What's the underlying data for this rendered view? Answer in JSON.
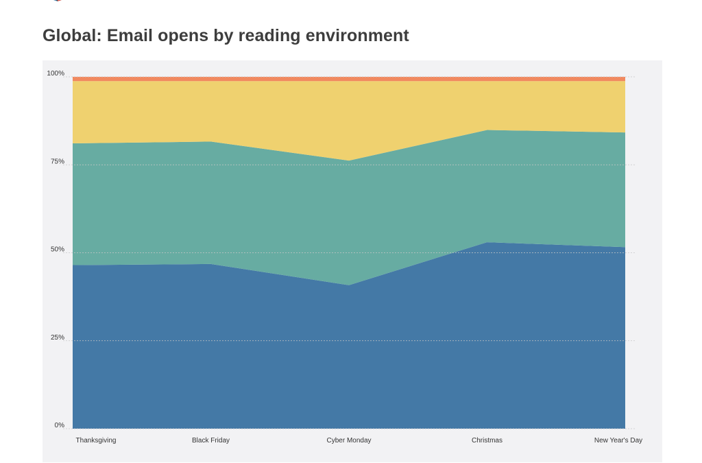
{
  "header": {
    "title": "Global: Email opens by reading environment"
  },
  "logo": {
    "icon": "pie-logo-icon",
    "colors": [
      "#3d7fb0",
      "#e45b4f",
      "#e8c455",
      "#65ab9e",
      "#2f4858"
    ]
  },
  "chart_data": {
    "type": "area",
    "stacked": true,
    "percent": true,
    "title": "Global: Email opens by reading environment",
    "xlabel": "",
    "ylabel": "",
    "categories": [
      "Thanksgiving",
      "Black Friday",
      "Cyber Monday",
      "Christmas",
      "New Year's Day"
    ],
    "y_ticks": [
      "0%",
      "25%",
      "50%",
      "75%",
      "100%"
    ],
    "ylim": [
      0,
      100
    ],
    "grid": true,
    "series": [
      {
        "values": [
          46.5,
          46.8,
          40.8,
          53.0,
          51.6
        ],
        "color": "#4479a6"
      },
      {
        "values": [
          34.6,
          34.8,
          35.4,
          31.9,
          32.6
        ],
        "color": "#67aca2"
      },
      {
        "values": [
          17.7,
          17.2,
          22.6,
          13.9,
          14.6
        ],
        "color": "#efd16f"
      },
      {
        "values": [
          1.2,
          1.2,
          1.2,
          1.2,
          1.2
        ],
        "color": "#f1895f"
      }
    ]
  }
}
